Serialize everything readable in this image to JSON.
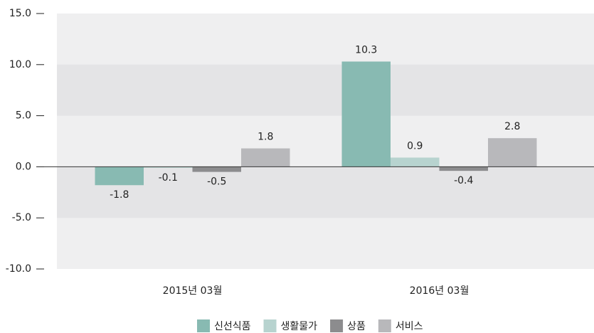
{
  "chart_data": {
    "type": "bar",
    "categories": [
      "2015년 03월",
      "2016년 03월"
    ],
    "series": [
      {
        "name": "신선식품",
        "color": "#88bab2",
        "values": [
          -1.8,
          10.3
        ]
      },
      {
        "name": "생활물가",
        "color": "#b7d3cf",
        "values": [
          -0.1,
          0.9
        ]
      },
      {
        "name": "상품",
        "color": "#8c8c8e",
        "values": [
          -0.5,
          -0.4
        ]
      },
      {
        "name": "서비스",
        "color": "#b8b8bb",
        "values": [
          1.8,
          2.8
        ]
      }
    ],
    "ylim": [
      -10,
      15
    ],
    "yticks": [
      {
        "value": -10,
        "label": "-10.0"
      },
      {
        "value": -5,
        "label": "-5.0"
      },
      {
        "value": 0,
        "label": "0.0"
      },
      {
        "value": 5,
        "label": "5.0"
      },
      {
        "value": 10,
        "label": "10.0"
      },
      {
        "value": 15,
        "label": "15.0"
      }
    ],
    "grid": true,
    "legend": "bottom"
  }
}
